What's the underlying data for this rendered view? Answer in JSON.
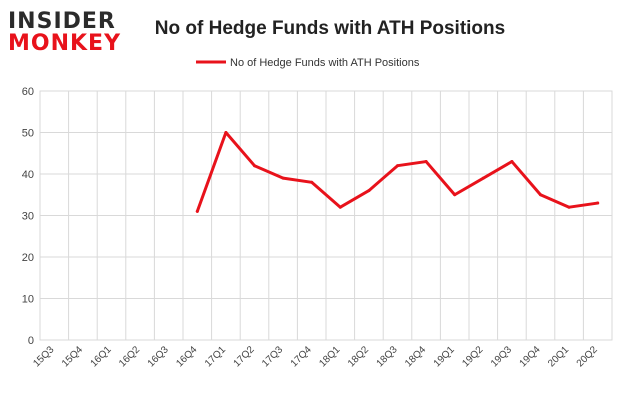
{
  "logo": {
    "line1": "INSIDER",
    "line2": "MONKEY"
  },
  "chart_data": {
    "type": "line",
    "title": "No of Hedge Funds with ATH Positions",
    "xlabel": "",
    "ylabel": "",
    "ylim": [
      0,
      60
    ],
    "yticks": [
      0,
      10,
      20,
      30,
      40,
      50,
      60
    ],
    "grid": true,
    "legend": "top-center",
    "categories": [
      "15Q3",
      "15Q4",
      "16Q1",
      "16Q2",
      "16Q3",
      "16Q4",
      "17Q1",
      "17Q2",
      "17Q3",
      "17Q4",
      "18Q1",
      "18Q2",
      "18Q3",
      "18Q4",
      "19Q1",
      "19Q2",
      "19Q3",
      "19Q4",
      "20Q1",
      "20Q2"
    ],
    "series": [
      {
        "name": "No of Hedge Funds with ATH Positions",
        "color": "#e8121b",
        "values": [
          null,
          null,
          null,
          null,
          null,
          31,
          50,
          42,
          39,
          38,
          32,
          36,
          42,
          43,
          35,
          39,
          43,
          35,
          32,
          33
        ]
      }
    ]
  },
  "colors": {
    "line": "#e8121b",
    "grid": "#d9d9d9",
    "axis_text": "#444444",
    "logo_red": "#e8121b",
    "logo_dark": "#2b2b2b"
  }
}
